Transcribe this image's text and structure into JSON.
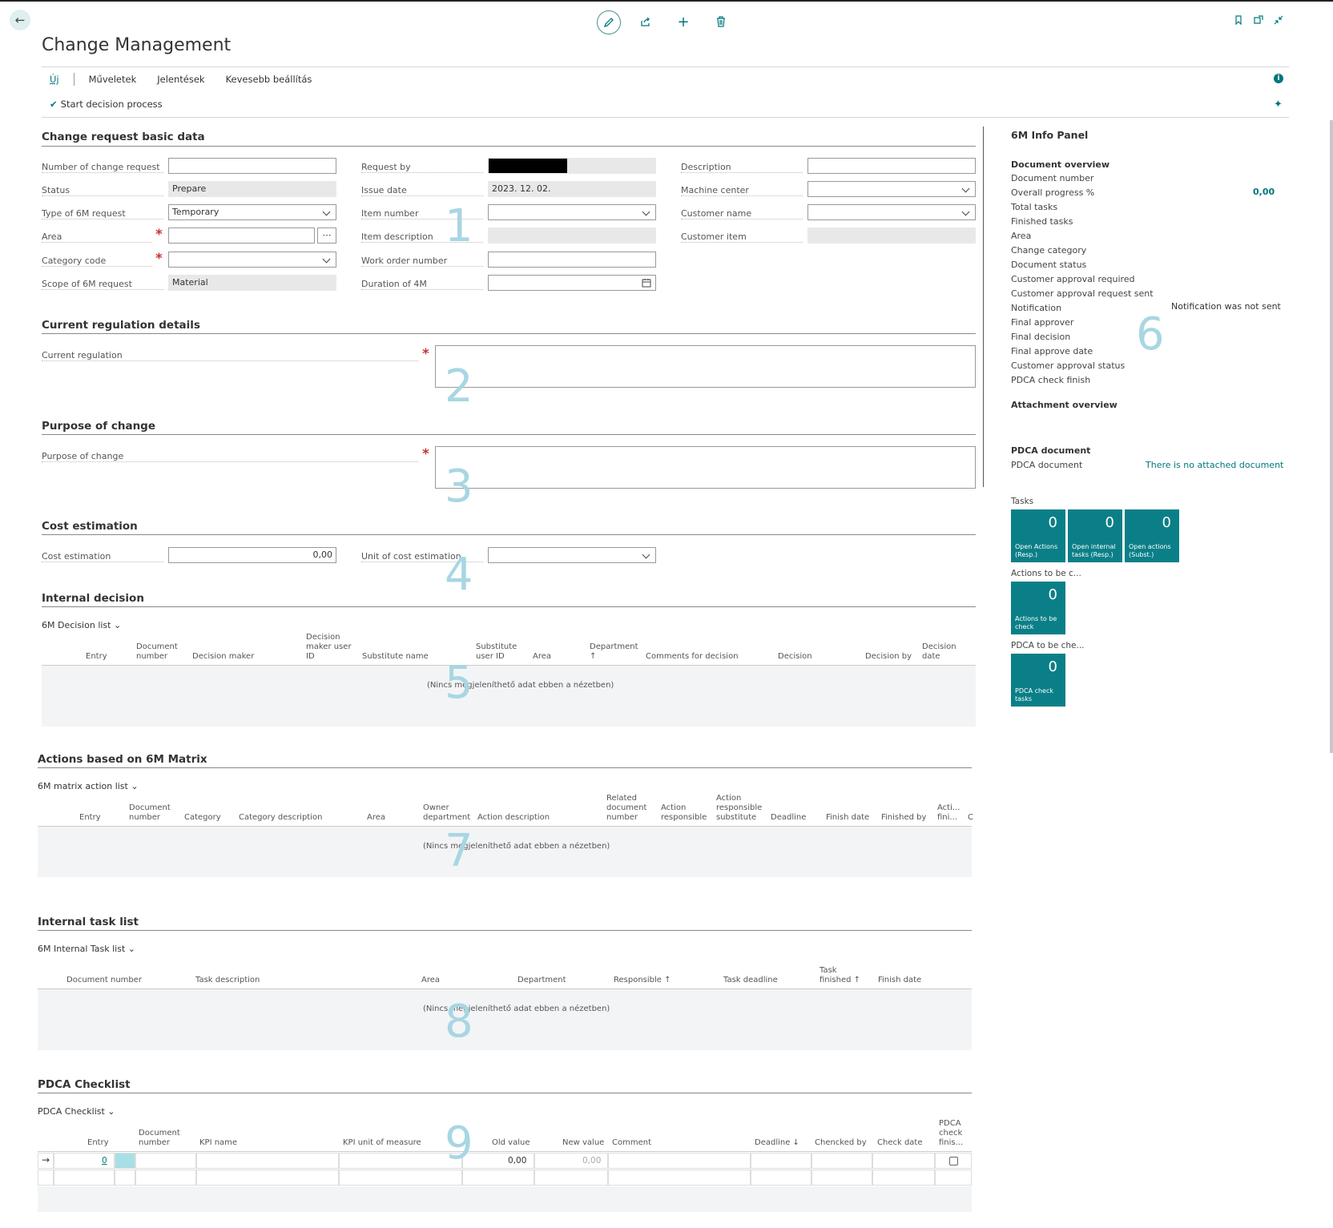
{
  "page": {
    "title": "Change Management"
  },
  "toolbar": {
    "icons": [
      "pencil-icon",
      "share-icon",
      "plus-icon",
      "trash-icon"
    ],
    "right_icons": [
      "bookmark-icon",
      "open-new-window-icon",
      "collapse-icon"
    ]
  },
  "actions": {
    "new": "Új",
    "items": [
      "Műveletek",
      "Jelentések",
      "Kevesebb beállítás"
    ],
    "start": "Start decision process"
  },
  "basic": {
    "title": "Change request basic data",
    "number_label": "Number of change request",
    "status_label": "Status",
    "status_value": "Prepare",
    "type_label": "Type of 6M request",
    "type_value": "Temporary",
    "area_label": "Area",
    "category_label": "Category code",
    "scope_label": "Scope of 6M request",
    "scope_value": "Material",
    "request_by_label": "Request by",
    "issue_date_label": "Issue date",
    "issue_date_value": "2023. 12. 02.",
    "item_number_label": "Item number",
    "item_description_label": "Item description",
    "work_order_label": "Work order number",
    "duration_label": "Duration of 4M",
    "description_label": "Description",
    "machine_center_label": "Machine center",
    "customer_name_label": "Customer name",
    "customer_item_label": "Customer item",
    "marker": "1"
  },
  "regulation": {
    "title": "Current regulation details",
    "label": "Current regulation",
    "marker": "2"
  },
  "purpose": {
    "title": "Purpose of change",
    "label": "Purpose of change",
    "marker": "3"
  },
  "cost": {
    "title": "Cost estimation",
    "label": "Cost estimation",
    "value": "0,00",
    "unit_label": "Unit of cost estimation",
    "marker": "4"
  },
  "internal_decision": {
    "title": "Internal decision",
    "list": "6M Decision list",
    "columns": [
      [
        "Entry"
      ],
      [
        "Document",
        "number"
      ],
      [
        "Decision maker"
      ],
      [
        "Decision",
        "maker user",
        "ID"
      ],
      [
        "Substitute name"
      ],
      [
        "Substitute",
        "user ID"
      ],
      [
        "Area"
      ],
      [
        "Department",
        "↑"
      ],
      [
        "Comments for decision"
      ],
      [
        "Decision"
      ],
      [
        "Decision by"
      ],
      [
        "Decision",
        "date"
      ]
    ],
    "empty": "(Nincs megjeleníthető adat ebben a nézetben)",
    "marker": "5"
  },
  "matrix": {
    "title": "Actions based on 6M Matrix",
    "list": "6M matrix action list",
    "columns": [
      [
        "Entry"
      ],
      [
        "Document",
        "number"
      ],
      [
        "Category"
      ],
      [
        "Category description"
      ],
      [
        "Area"
      ],
      [
        "Owner",
        "department"
      ],
      [
        "Action description"
      ],
      [
        "Related",
        "document",
        "number"
      ],
      [
        "Action",
        "responsible"
      ],
      [
        "Action",
        "responsible",
        "substitute"
      ],
      [
        "Deadline"
      ],
      [
        "Finish date"
      ],
      [
        "Finished by"
      ],
      [
        "Acti...",
        "fini..."
      ],
      [
        "C"
      ]
    ],
    "empty": "(Nincs megjeleníthető adat ebben a nézetben)",
    "marker": "7"
  },
  "tasks": {
    "title": "Internal task list",
    "list": "6M Internal Task list",
    "columns": [
      [
        "Document number"
      ],
      [
        "Task description"
      ],
      [
        "Area"
      ],
      [
        "Department"
      ],
      [
        "Responsible ↑"
      ],
      [
        "Task deadline"
      ],
      [
        "Task",
        "finished ↑"
      ],
      [
        "Finish date"
      ]
    ],
    "empty": "(Nincs megjeleníthető adat ebben a nézetben)",
    "marker": "8"
  },
  "pdca": {
    "title": "PDCA Checklist",
    "list": "PDCA Checklist",
    "columns": [
      [
        "Entry"
      ],
      [
        "Document",
        "number"
      ],
      [
        "KPI name"
      ],
      [
        "KPI unit of measure"
      ],
      [
        "Old value"
      ],
      [
        "New value"
      ],
      [
        "Comment"
      ],
      [
        "Deadline ↓"
      ],
      [
        "Chencked by"
      ],
      [
        "Check date"
      ],
      [
        "PDCA",
        "check",
        "finis..."
      ]
    ],
    "row": {
      "entry": "0",
      "old_value": "0,00",
      "new_value": "0,00"
    },
    "marker": "9"
  },
  "info_panel": {
    "title": "6M Info Panel",
    "overview_title": "Document overview",
    "fields": [
      "Document number",
      "Overall progress %",
      "Total tasks",
      "Finished tasks",
      "Area",
      "Change category",
      "Document status",
      "Customer approval required",
      "Customer approval request sent",
      "Notification",
      "Final approver",
      "Final decision",
      "Final approve date",
      "Customer approval status",
      "PDCA check finish"
    ],
    "progress_value": "0,00",
    "notification_value": "Notification was not sent",
    "attachment_title": "Attachment overview",
    "pdca_doc_title": "PDCA document",
    "pdca_doc_label": "PDCA document",
    "pdca_doc_value": "There is no attached document",
    "marker": "6",
    "tasks_label": "Tasks",
    "tiles": [
      {
        "value": "0",
        "caption1": "Open Actions",
        "caption2": "(Resp.)"
      },
      {
        "value": "0",
        "caption1": "Open internal",
        "caption2": "tasks (Resp.)"
      },
      {
        "value": "0",
        "caption1": "Open actions",
        "caption2": "(Subst.)"
      }
    ],
    "actions_label": "Actions to be c...",
    "actions_tile": {
      "value": "0",
      "caption1": "Actions to be",
      "caption2": "check"
    },
    "pdca_label": "PDCA to be che...",
    "pdca_tile": {
      "value": "0",
      "caption1": "PDCA check",
      "caption2": "tasks"
    }
  }
}
